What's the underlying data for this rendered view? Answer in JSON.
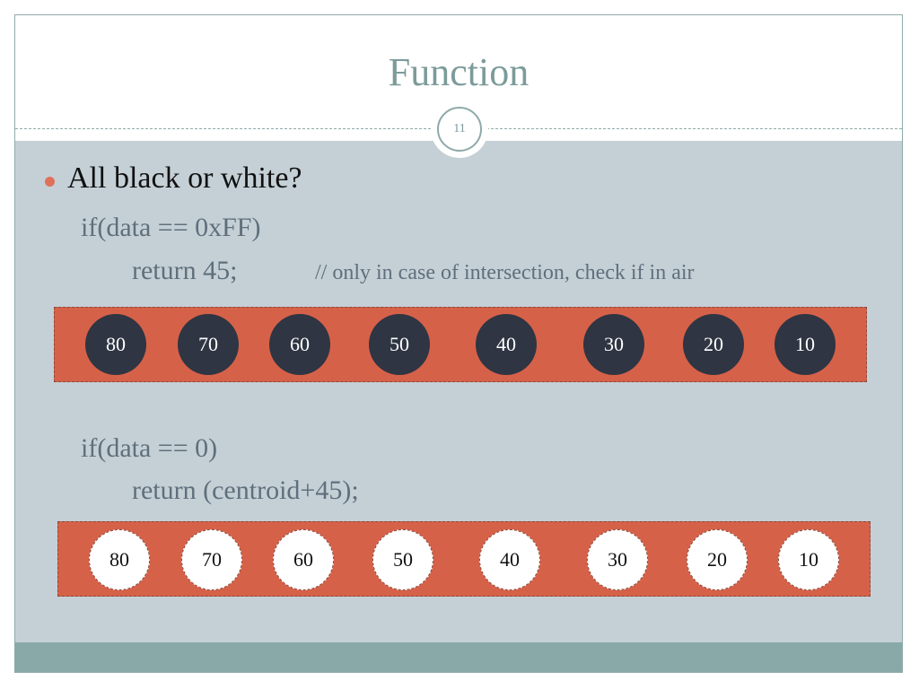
{
  "slide": {
    "title": "Function",
    "number": "11"
  },
  "bullet": {
    "text": "All black or white?"
  },
  "block1": {
    "line1": "if(data == 0xFF)",
    "line2": "return 45;",
    "comment": "// only in case of intersection, check if in air"
  },
  "block2": {
    "line1": "if(data == 0)",
    "line2": "return (centroid+45);"
  },
  "sensor_bar_dark": {
    "values": [
      "80",
      "70",
      "60",
      "50",
      "40",
      "30",
      "20",
      "10"
    ],
    "state": "black"
  },
  "sensor_bar_light": {
    "values": [
      "80",
      "70",
      "60",
      "50",
      "40",
      "30",
      "20",
      "10"
    ],
    "state": "white"
  },
  "colors": {
    "title": "#7c9b9a",
    "body_bg": "#c5d0d6",
    "footer": "#88a9a8",
    "bar": "#d66149",
    "dark_pixel": "#2f3542",
    "bullet": "#e0705a"
  }
}
